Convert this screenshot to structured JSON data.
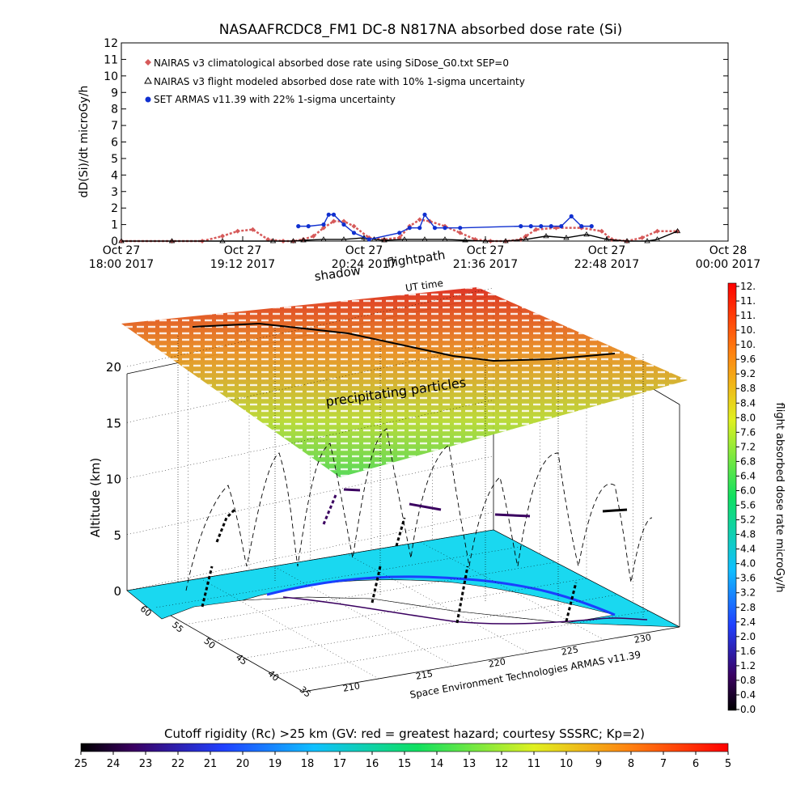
{
  "top_chart": {
    "title": "NASAAFRCDC8_FM1 DC-8    N817NA absorbed dose rate (Si)",
    "ylabel": "dD(Si)/dt microGy/h",
    "xlabel": "UT time",
    "legend": [
      {
        "label": "NAIRAS v3 climatological absorbed dose rate using SiDose_G0.txt SEP=0",
        "color": "#d65a5a",
        "marker": "diamond"
      },
      {
        "label": "NAIRAS v3 flight modeled absorbed dose rate with 10% 1-sigma uncertainty",
        "color": "#000000",
        "marker": "triangle"
      },
      {
        "label": "SET ARMAS v11.39 with 22% 1-sigma uncertainty",
        "color": "#1030d0",
        "marker": "circle"
      }
    ],
    "x_ticks": [
      {
        "line1": "Oct 27",
        "line2": "18:00 2017"
      },
      {
        "line1": "Oct 27",
        "line2": "19:12 2017"
      },
      {
        "line1": "Oct 27",
        "line2": "20:24 2017"
      },
      {
        "line1": "Oct 27",
        "line2": "21:36 2017"
      },
      {
        "line1": "Oct 27",
        "line2": "22:48 2017"
      },
      {
        "line1": "Oct 28",
        "line2": "00:00 2017"
      }
    ],
    "y_ticks": [
      "0",
      "1",
      "2",
      "3",
      "4",
      "5",
      "6",
      "7",
      "8",
      "9",
      "10",
      "11",
      "12"
    ]
  },
  "chart_data": [
    {
      "type": "line",
      "title": "NASAAFRCDC8_FM1 DC-8    N817NA absorbed dose rate (Si)",
      "xlabel": "UT time",
      "ylabel": "dD(Si)/dt microGy/h",
      "x_unit": "hours UT since Oct 27 18:00 2017",
      "xlim": [
        0,
        6
      ],
      "ylim": [
        0,
        12
      ],
      "series": [
        {
          "name": "NAIRAS v3 climatological absorbed dose rate using SiDose_G0.txt SEP=0",
          "x": [
            0,
            0.5,
            0.8,
            1.0,
            1.15,
            1.3,
            1.45,
            1.6,
            1.7,
            1.8,
            1.9,
            2.0,
            2.1,
            2.2,
            2.3,
            2.45,
            2.6,
            2.75,
            2.85,
            2.95,
            3.05,
            3.2,
            3.35,
            3.5,
            3.65,
            3.8,
            3.95,
            4.0,
            4.1,
            4.3,
            4.55,
            4.75,
            4.85,
            5.0,
            5.15,
            5.3,
            5.5
          ],
          "values": [
            0,
            0,
            0,
            0.3,
            0.6,
            0.7,
            0.1,
            0,
            0,
            0.1,
            0.3,
            0.8,
            1.2,
            1.2,
            0.9,
            0.2,
            0.1,
            0.2,
            0.9,
            1.3,
            1.2,
            0.9,
            0.5,
            0.1,
            0,
            0,
            0.1,
            0.3,
            0.7,
            0.8,
            0.8,
            0.6,
            0.1,
            0,
            0.2,
            0.6,
            0.6
          ]
        },
        {
          "name": "NAIRAS v3 flight modeled absorbed dose rate with 10% 1-sigma uncertainty",
          "x": [
            0,
            0.5,
            1.0,
            1.5,
            1.7,
            1.8,
            2.0,
            2.2,
            2.4,
            2.5,
            2.6,
            2.8,
            3.0,
            3.2,
            3.4,
            3.6,
            3.8,
            4.0,
            4.2,
            4.4,
            4.6,
            4.8,
            5.0,
            5.2,
            5.3,
            5.5
          ],
          "values": [
            0,
            0,
            0,
            0,
            0,
            0.05,
            0.1,
            0.1,
            0.2,
            0.1,
            0.05,
            0.1,
            0.1,
            0.1,
            0.05,
            0,
            0,
            0.1,
            0.3,
            0.2,
            0.4,
            0.1,
            0,
            0,
            0.1,
            0.6
          ]
        },
        {
          "name": "SET ARMAS v11.39 with 22% 1-sigma uncertainty",
          "x": [
            1.75,
            1.85,
            2.0,
            2.05,
            2.1,
            2.2,
            2.3,
            2.45,
            2.75,
            2.85,
            2.95,
            3.0,
            3.1,
            3.2,
            3.35,
            3.95,
            4.05,
            4.15,
            4.25,
            4.35,
            4.45,
            4.55,
            4.65
          ],
          "values": [
            0.9,
            0.9,
            1.0,
            1.6,
            1.6,
            1.0,
            0.5,
            0.1,
            0.5,
            0.8,
            0.8,
            1.6,
            0.8,
            0.8,
            0.8,
            0.9,
            0.9,
            0.9,
            0.9,
            0.9,
            1.5,
            0.9,
            0.9
          ]
        }
      ]
    },
    {
      "type": "scatter",
      "ylabel": "Altitude (km)",
      "x_ticks": [
        "210",
        "215",
        "220",
        "225",
        "230"
      ],
      "y_ticks": [
        "0",
        "5",
        "10",
        "15",
        "20"
      ],
      "depth_ticks": [
        "60",
        "55",
        "50",
        "45",
        "40",
        "35"
      ],
      "x_caption": "Space Environment Technologies ARMAS v11.39",
      "annotations": [
        "shadow",
        "flightpath",
        "UT time",
        "precipitating particles"
      ],
      "colorbar_right": {
        "label": "flight absorbed dose rate microGy/h",
        "ticks": [
          "12.",
          "11.",
          "11.",
          "10.",
          "10.",
          "9.6",
          "9.2",
          "8.8",
          "8.4",
          "8.0",
          "7.6",
          "7.2",
          "6.8",
          "6.4",
          "6.0",
          "5.6",
          "5.2",
          "4.8",
          "4.4",
          "4.0",
          "3.6",
          "3.2",
          "2.8",
          "2.4",
          "2.0",
          "1.6",
          "1.2",
          "0.8",
          "0.4",
          "0.0"
        ]
      },
      "colorbar_bottom": {
        "label": "Cutoff rigidity (Rc) >25 km (GV: red = greatest hazard; courtesy SSSRC; Kp=2)",
        "ticks": [
          "25",
          "24",
          "23",
          "22",
          "21",
          "20",
          "19",
          "18",
          "17",
          "16",
          "15",
          "14",
          "13",
          "12",
          "11",
          "10",
          "9",
          "8",
          "7",
          "6",
          "5"
        ]
      }
    }
  ]
}
